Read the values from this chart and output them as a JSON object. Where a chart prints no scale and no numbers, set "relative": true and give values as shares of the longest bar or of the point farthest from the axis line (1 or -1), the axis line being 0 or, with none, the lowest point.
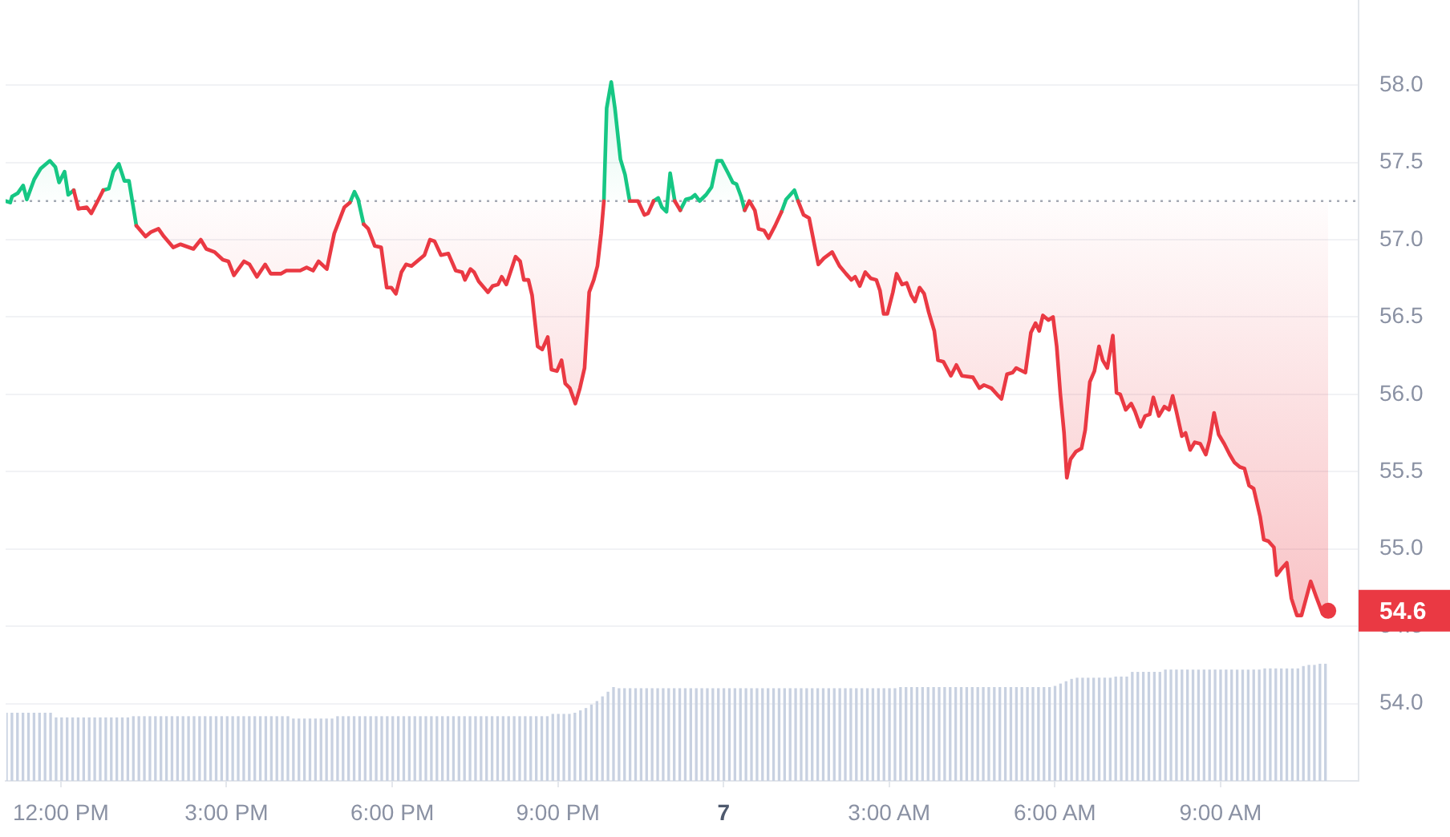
{
  "chart_data": [
    {
      "type": "line",
      "x": [
        "--01-06T11:00",
        "--01-06T11:05",
        "--01-06T11:07",
        "--01-06T11:13",
        "--01-06T11:19",
        "--01-06T11:23",
        "--01-06T11:31",
        "--01-06T11:38",
        "--01-06T11:48",
        "--01-06T11:54",
        "--01-06T11:58",
        "--01-06T12:04",
        "--01-06T12:08",
        "--01-06T12:14",
        "--01-06T12:19",
        "--01-06T12:28",
        "--01-06T12:33",
        "--01-06T12:40",
        "--01-06T12:46",
        "--01-06T12:52",
        "--01-06T12:57",
        "--01-06T13:03",
        "--01-06T13:09",
        "--01-06T13:14",
        "--01-06T13:22",
        "--01-06T13:32",
        "--01-06T13:38",
        "--01-06T13:46",
        "--01-06T13:52",
        "--01-06T14:02",
        "--01-06T14:10",
        "--01-06T14:24",
        "--01-06T14:32",
        "--01-06T14:38",
        "--01-06T14:47",
        "--01-06T14:56",
        "--01-06T15:02",
        "--01-06T15:08",
        "--01-06T15:19",
        "--01-06T15:25",
        "--01-06T15:33",
        "--01-06T15:42",
        "--01-06T15:48",
        "--01-06T15:59",
        "--01-06T16:05",
        "--01-06T16:20",
        "--01-06T16:27",
        "--01-06T16:34",
        "--01-06T16:40",
        "--01-06T16:49",
        "--01-06T16:57",
        "--01-06T17:08",
        "--01-06T17:14",
        "--01-06T17:19",
        "--01-06T17:23",
        "--01-06T17:29",
        "--01-06T17:34",
        "--01-06T17:41",
        "--01-06T17:48",
        "--01-06T17:54",
        "--01-06T17:59",
        "--01-06T18:04",
        "--01-06T18:10",
        "--01-06T18:15",
        "--01-06T18:21",
        "--01-06T18:29",
        "--01-06T18:35",
        "--01-06T18:41",
        "--01-06T18:46",
        "--01-06T18:53",
        "--01-06T19:01",
        "--01-06T19:09",
        "--01-06T19:16",
        "--01-06T19:19",
        "--01-06T19:25",
        "--01-06T19:29",
        "--01-06T19:34",
        "--01-06T19:44",
        "--01-06T19:49",
        "--01-06T19:55",
        "--01-06T19:59",
        "--01-06T20:04",
        "--01-06T20:14",
        "--01-06T20:19",
        "--01-06T20:23",
        "--01-06T20:28",
        "--01-06T20:32",
        "--01-06T20:38",
        "--01-06T20:43",
        "--01-06T20:49",
        "--01-06T20:53",
        "--01-06T20:59",
        "--01-06T21:04",
        "--01-06T21:08",
        "--01-06T21:13",
        "--01-06T21:19",
        "--01-06T21:24",
        "--01-06T21:29",
        "--01-06T21:34",
        "--01-06T21:39",
        "--01-06T21:43",
        "--01-06T21:47",
        "--01-06T21:50",
        "--01-06T21:53",
        "--01-06T21:58",
        "--01-06T22:02",
        "--01-06T22:08",
        "--01-06T22:13",
        "--01-06T22:18",
        "--01-06T22:27",
        "--01-06T22:34",
        "--01-06T22:38",
        "--01-06T22:44",
        "--01-06T22:49",
        "--01-06T22:53",
        "--01-06T22:58",
        "--01-06T23:02",
        "--01-06T23:07",
        "--01-06T23:13",
        "--01-06T23:19",
        "--01-06T23:25",
        "--01-06T23:29",
        "--01-06T23:34",
        "--01-06T23:41",
        "--01-06T23:47",
        "--01-06T23:53",
        "--01-06T23:58",
        "--01-07T00:05",
        "--01-07T00:10",
        "--01-07T00:14",
        "--01-07T00:19",
        "--01-07T00:23",
        "--01-07T00:28",
        "--01-07T00:34",
        "--01-07T00:38",
        "--01-07T00:44",
        "--01-07T00:49",
        "--01-07T00:56",
        "--01-07T01:03",
        "--01-07T01:08",
        "--01-07T01:17",
        "--01-07T01:21",
        "--01-07T01:27",
        "--01-07T01:33",
        "--01-07T01:43",
        "--01-07T01:49",
        "--01-07T01:58",
        "--01-07T02:06",
        "--01-07T02:13",
        "--01-07T02:19",
        "--01-07T02:23",
        "--01-07T02:28",
        "--01-07T02:34",
        "--01-07T02:40",
        "--01-07T02:46",
        "--01-07T02:50",
        "--01-07T02:54",
        "--01-07T02:58",
        "--01-07T03:04",
        "--01-07T03:08",
        "--01-07T03:14",
        "--01-07T03:19",
        "--01-07T03:24",
        "--01-07T03:28",
        "--01-07T03:33",
        "--01-07T03:38",
        "--01-07T03:43",
        "--01-07T03:49",
        "--01-07T03:53",
        "--01-07T03:59",
        "--01-07T04:07",
        "--01-07T04:13",
        "--01-07T04:19",
        "--01-07T04:31",
        "--01-07T04:38",
        "--01-07T04:43",
        "--01-07T04:51",
        "--01-07T04:57",
        "--01-07T05:02",
        "--01-07T05:08",
        "--01-07T05:14",
        "--01-07T05:18",
        "--01-07T05:28",
        "--01-07T05:34",
        "--01-07T05:39",
        "--01-07T05:43",
        "--01-07T05:47",
        "--01-07T05:53",
        "--01-07T05:58",
        "--01-07T06:02",
        "--01-07T06:06",
        "--01-07T06:10",
        "--01-07T06:13",
        "--01-07T06:17",
        "--01-07T06:23",
        "--01-07T06:29",
        "--01-07T06:33",
        "--01-07T06:38",
        "--01-07T06:43",
        "--01-07T06:48",
        "--01-07T06:52",
        "--01-07T06:57",
        "--01-07T07:03",
        "--01-07T07:07",
        "--01-07T07:11",
        "--01-07T07:17",
        "--01-07T07:23",
        "--01-07T07:27",
        "--01-07T07:33",
        "--01-07T07:38",
        "--01-07T07:43",
        "--01-07T07:47",
        "--01-07T07:53",
        "--01-07T07:59",
        "--01-07T08:04",
        "--01-07T08:08",
        "--01-07T08:12",
        "--01-07T08:18",
        "--01-07T08:22",
        "--01-07T08:27",
        "--01-07T08:32",
        "--01-07T08:38",
        "--01-07T08:44",
        "--01-07T08:48",
        "--01-07T08:53",
        "--01-07T08:58",
        "--01-07T09:04",
        "--01-07T09:10",
        "--01-07T09:15",
        "--01-07T09:21",
        "--01-07T09:26",
        "--01-07T09:31",
        "--01-07T09:36",
        "--01-07T09:43",
        "--01-07T09:47",
        "--01-07T09:52",
        "--01-07T09:58",
        "--01-07T10:01",
        "--01-07T10:06",
        "--01-07T10:12",
        "--01-07T10:17",
        "--01-07T10:23",
        "--01-07T10:28",
        "--01-07T10:38",
        "--01-07T10:44",
        "--01-07T10:51",
        "--01-07T10:57"
      ],
      "series": [
        {
          "color": "#ea3943",
          "values": [
            null,
            null,
            null,
            null,
            null,
            null,
            null,
            null,
            null,
            null,
            null,
            null,
            null,
            57.32,
            57.2,
            57.21,
            57.17,
            57.25,
            57.32,
            null,
            null,
            null,
            null,
            null,
            57.09,
            57.02,
            57.05,
            57.07,
            57.02,
            56.95,
            56.97,
            56.94,
            57,
            56.94,
            56.92,
            56.87,
            56.86,
            56.77,
            56.86,
            56.84,
            56.76,
            56.84,
            56.78,
            56.78,
            56.8,
            56.8,
            56.82,
            56.8,
            56.86,
            56.81,
            57.04,
            57.21,
            57.24,
            null,
            null,
            57.1,
            57.07,
            56.96,
            56.95,
            56.69,
            56.69,
            56.65,
            56.79,
            56.84,
            56.83,
            56.87,
            56.9,
            57,
            56.99,
            56.9,
            56.91,
            56.8,
            56.79,
            56.74,
            56.81,
            56.79,
            56.73,
            56.66,
            56.7,
            56.71,
            56.76,
            56.71,
            56.89,
            56.86,
            56.74,
            56.74,
            56.64,
            56.31,
            56.29,
            56.37,
            56.16,
            56.15,
            56.22,
            56.07,
            56.04,
            55.94,
            56.04,
            56.17,
            56.66,
            56.74,
            56.83,
            57.04,
            57.25,
            null,
            null,
            null,
            null,
            null,
            57.25,
            57.25,
            57.16,
            57.17,
            57.25,
            null,
            null,
            null,
            null,
            57.25,
            57.19,
            null,
            null,
            null,
            null,
            null,
            null,
            null,
            null,
            null,
            null,
            null,
            null,
            57.19,
            57.25,
            57.19,
            57.07,
            57.06,
            57.01,
            57.09,
            57.18,
            null,
            null,
            57.25,
            57.16,
            57.14,
            56.84,
            56.88,
            56.92,
            56.83,
            56.78,
            56.74,
            56.76,
            56.7,
            56.79,
            56.75,
            56.74,
            56.67,
            56.52,
            56.52,
            56.66,
            56.78,
            56.71,
            56.72,
            56.64,
            56.6,
            56.69,
            56.65,
            56.53,
            56.41,
            56.22,
            56.21,
            56.12,
            56.19,
            56.12,
            56.11,
            56.04,
            56.06,
            56.04,
            56,
            55.97,
            56.13,
            56.14,
            56.17,
            56.14,
            56.4,
            56.46,
            56.41,
            56.51,
            56.48,
            56.5,
            56.31,
            56,
            55.75,
            55.46,
            55.58,
            55.63,
            55.65,
            55.77,
            56.08,
            56.15,
            56.31,
            56.22,
            56.17,
            56.38,
            56.01,
            56,
            55.9,
            55.94,
            55.89,
            55.79,
            55.86,
            55.87,
            55.98,
            55.86,
            55.92,
            55.9,
            55.99,
            55.89,
            55.73,
            55.75,
            55.64,
            55.69,
            55.68,
            55.61,
            55.7,
            55.88,
            55.74,
            55.68,
            55.61,
            55.56,
            55.53,
            55.52,
            55.41,
            55.39,
            55.21,
            55.06,
            55.05,
            55.01,
            54.83,
            54.87,
            54.91,
            54.68,
            54.57,
            54.57,
            54.79,
            54.69,
            54.58,
            54.6
          ],
          "upper": [
            57.25,
            57.25,
            57.28,
            57.3,
            57.35,
            57.26,
            57.39,
            57.46,
            57.51,
            57.47,
            57.37,
            57.44,
            57.29,
            57.32,
            57.25,
            57.25,
            57.25,
            57.25,
            57.32,
            57.33,
            57.44,
            57.49,
            57.38,
            57.38,
            57.25,
            57.25,
            57.25,
            57.25,
            57.25,
            57.25,
            57.25,
            57.25,
            57.25,
            57.25,
            57.25,
            57.25,
            57.25,
            57.25,
            57.25,
            57.25,
            57.25,
            57.25,
            57.25,
            57.25,
            57.25,
            57.25,
            57.25,
            57.25,
            57.25,
            57.25,
            57.25,
            57.25,
            57.25,
            57.31,
            57.26,
            57.25,
            57.25,
            57.25,
            57.25,
            57.25,
            57.25,
            57.25,
            57.25,
            57.25,
            57.25,
            57.25,
            57.25,
            57.25,
            57.25,
            57.25,
            57.25,
            57.25,
            57.25,
            57.25,
            57.25,
            57.25,
            57.25,
            57.25,
            57.25,
            57.25,
            57.25,
            57.25,
            57.25,
            57.25,
            57.25,
            57.25,
            57.25,
            57.25,
            57.25,
            57.25,
            57.25,
            57.25,
            57.25,
            57.25,
            57.25,
            57.25,
            57.25,
            57.25,
            57.25,
            57.25,
            57.25,
            57.25,
            57.25,
            57.85,
            58.02,
            57.85,
            57.52,
            57.42,
            57.25,
            57.25,
            57.25,
            57.25,
            57.25,
            57.27,
            57.25,
            57.25,
            57.43,
            57.25,
            57.25,
            57.26,
            57.27,
            57.29,
            57.25,
            57.29,
            57.34,
            57.51,
            57.51,
            57.43,
            57.37,
            57.36,
            57.28,
            57.25,
            57.25,
            57.25,
            57.25,
            57.25,
            57.25,
            57.25,
            57.25,
            57.26,
            57.32,
            57.25,
            57.25,
            57.25,
            57.25,
            57.25,
            57.25,
            57.25,
            57.25,
            57.25,
            57.25,
            57.25,
            57.25,
            57.25,
            57.25,
            57.25,
            57.25,
            57.25,
            57.25,
            57.25,
            57.25,
            57.25,
            57.25,
            57.25,
            57.25,
            57.25,
            57.25,
            57.25,
            57.25,
            57.25,
            57.25,
            57.25,
            57.25,
            57.25,
            57.25,
            57.25,
            57.25,
            57.25,
            57.25,
            57.25,
            57.25,
            57.25,
            57.25,
            57.25,
            57.25,
            57.25,
            57.25,
            57.25,
            57.25,
            57.25,
            57.25,
            57.25,
            57.25,
            57.25,
            57.25,
            57.25,
            57.25,
            57.25,
            57.25,
            57.25,
            57.25,
            57.25,
            57.25,
            57.25,
            57.25,
            57.25,
            57.25,
            57.25,
            57.25,
            57.25,
            57.25,
            57.25,
            57.25,
            57.25,
            57.25,
            57.25,
            57.25,
            57.25,
            57.25,
            57.25,
            57.25,
            57.25,
            57.25,
            57.25,
            57.25,
            57.25,
            57.25,
            57.25,
            57.25,
            57.25,
            57.25,
            57.25,
            57.25,
            57.25,
            57.25,
            57.25,
            57.25,
            57.25,
            57.25,
            57.25,
            57.25,
            57.25,
            57.25,
            57.25,
            57.25,
            57.25,
            57.25
          ],
          "lower": [
            57.25,
            57.24,
            57.25,
            57.25,
            57.25,
            57.25,
            57.25,
            57.25,
            57.25,
            57.25,
            57.25,
            57.25,
            57.25,
            57.25,
            57.2,
            57.21,
            57.17,
            57.25,
            57.25,
            57.25,
            57.25,
            57.25,
            57.25,
            57.25,
            57.09,
            57.02,
            57.05,
            57.07,
            57.02,
            56.95,
            56.97,
            56.94,
            57,
            56.94,
            56.92,
            56.87,
            56.86,
            56.77,
            56.86,
            56.84,
            56.76,
            56.84,
            56.78,
            56.78,
            56.8,
            56.8,
            56.82,
            56.8,
            56.86,
            56.81,
            57.04,
            57.21,
            57.24,
            57.25,
            57.25,
            57.1,
            57.07,
            56.96,
            56.95,
            56.69,
            56.69,
            56.65,
            56.79,
            56.84,
            56.83,
            56.87,
            56.9,
            57,
            56.99,
            56.9,
            56.91,
            56.8,
            56.79,
            56.74,
            56.81,
            56.79,
            56.73,
            56.66,
            56.7,
            56.71,
            56.76,
            56.71,
            56.89,
            56.86,
            56.74,
            56.74,
            56.64,
            56.31,
            56.29,
            56.37,
            56.16,
            56.15,
            56.22,
            56.07,
            56.04,
            55.94,
            56.04,
            56.17,
            56.66,
            56.74,
            56.83,
            57.04,
            57.25,
            57.25,
            57.25,
            57.25,
            57.25,
            57.25,
            57.25,
            57.25,
            57.16,
            57.17,
            57.25,
            57.25,
            57.21,
            57.18,
            57.25,
            57.25,
            57.19,
            57.25,
            57.25,
            57.25,
            57.25,
            57.25,
            57.25,
            57.25,
            57.25,
            57.25,
            57.25,
            57.25,
            57.25,
            57.19,
            57.25,
            57.19,
            57.07,
            57.06,
            57.01,
            57.09,
            57.18,
            57.25,
            57.25,
            57.25,
            57.16,
            57.14,
            56.84,
            56.88,
            56.92,
            56.83,
            56.78,
            56.74,
            56.76,
            56.7,
            56.79,
            56.75,
            56.74,
            56.67,
            56.52,
            56.52,
            56.66,
            56.78,
            56.71,
            56.72,
            56.64,
            56.6,
            56.69,
            56.65,
            56.53,
            56.41,
            56.22,
            56.21,
            56.12,
            56.19,
            56.12,
            56.11,
            56.04,
            56.06,
            56.04,
            56,
            55.97,
            56.13,
            56.14,
            56.17,
            56.14,
            56.4,
            56.46,
            56.41,
            56.51,
            56.48,
            56.5,
            56.31,
            56,
            55.75,
            55.46,
            55.58,
            55.63,
            55.65,
            55.77,
            56.08,
            56.15,
            56.31,
            56.22,
            56.17,
            56.38,
            56.01,
            56,
            55.9,
            55.94,
            55.89,
            55.79,
            55.86,
            55.87,
            55.98,
            55.86,
            55.92,
            55.9,
            55.99,
            55.89,
            55.73,
            55.75,
            55.64,
            55.69,
            55.68,
            55.61,
            55.7,
            55.88,
            55.74,
            55.68,
            55.61,
            55.56,
            55.53,
            55.52,
            55.41,
            55.39,
            55.21,
            55.06,
            55.05,
            55.01,
            54.83,
            54.87,
            54.91,
            54.68,
            54.57,
            54.57,
            54.79,
            54.69,
            54.58,
            54.6
          ]
        },
        {
          "color": "#16c784",
          "x": [
            "--01-06T11:00",
            "--01-06T11:05",
            "--01-06T11:07",
            "--01-06T11:13",
            "--01-06T11:19",
            "--01-06T11:23",
            "--01-06T11:31",
            "--01-06T11:38",
            "--01-06T11:48",
            "--01-06T11:54",
            "--01-06T11:58",
            "--01-06T12:04",
            "--01-06T12:08",
            "--01-06T12:14",
            "--01-06T12:28",
            "--01-06T12:46",
            "--01-06T12:52",
            "--01-06T12:57",
            "--01-06T13:03",
            "--01-06T13:09",
            "--01-06T13:14",
            "--01-06T13:22",
            "--01-06T13:32",
            "--01-06T17:14",
            "--01-06T17:19",
            "--01-06T17:23",
            "--01-06T17:29",
            "--01-06T17:34",
            "--01-06T21:50",
            "--01-06T21:53",
            "--01-06T21:58",
            "--01-06T22:02",
            "--01-06T22:08",
            "--01-06T22:13",
            "--01-06T22:18",
            "--01-06T22:27",
            "--01-06T22:44",
            "--01-06T22:49",
            "--01-06T22:53",
            "--01-06T22:58",
            "--01-06T23:02",
            "--01-06T23:07",
            "--01-06T23:10",
            "--01-06T23:13",
            "--01-06T23:19",
            "--01-06T23:25",
            "--01-06T23:29",
            "--01-06T23:34",
            "--01-06T23:41",
            "--01-06T23:47",
            "--01-06T23:53",
            "--01-06T23:58",
            "--01-07T00:05",
            "--01-07T00:10",
            "--01-07T00:14",
            "--01-07T00:19",
            "--01-07T00:23",
            "--01-07T00:28",
            "--01-07T01:03",
            "--01-07T01:08",
            "--01-07T01:17",
            "--01-07T01:21"
          ],
          "values": [
            57.25,
            57.24,
            57.28,
            57.3,
            57.35,
            57.26,
            57.39,
            57.46,
            57.51,
            57.47,
            57.37,
            57.44,
            57.29,
            57.32,
            null,
            57.32,
            57.33,
            57.44,
            57.49,
            57.38,
            57.38,
            57.09,
            null,
            57.24,
            57.31,
            57.26,
            57.1,
            null,
            57.25,
            57.85,
            58.02,
            57.85,
            57.52,
            57.42,
            57.25,
            null,
            57.25,
            57.27,
            57.21,
            57.18,
            57.43,
            57.25,
            null,
            57.19,
            57.26,
            57.27,
            57.29,
            57.25,
            57.29,
            57.34,
            57.51,
            57.51,
            57.43,
            57.37,
            57.36,
            57.28,
            57.19,
            null,
            57.18,
            57.26,
            57.32,
            57.25
          ]
        }
      ],
      "xlim": [
        "--01-06T11:00",
        "--01-07T11:30"
      ],
      "xticks": [
        {
          "value": "--01-06T12:00",
          "label": "12:00 PM"
        },
        {
          "value": "--01-06T15:00",
          "label": "3:00 PM"
        },
        {
          "value": "--01-06T18:00",
          "label": "6:00 PM"
        },
        {
          "value": "--01-06T21:00",
          "label": "9:00 PM"
        },
        {
          "value": "--01-07T00:00",
          "label": "7"
        },
        {
          "value": "--01-07T03:00",
          "label": "3:00 AM"
        },
        {
          "value": "--01-07T06:00",
          "label": "6:00 AM"
        },
        {
          "value": "--01-07T09:00",
          "label": "9:00 AM"
        }
      ],
      "ylim": [
        53.5,
        58.55
      ],
      "yticks": [
        {
          "value": 54,
          "label": "54.0"
        },
        54.5,
        {
          "value": 55,
          "label": "55.0"
        },
        55.5,
        {
          "value": 56,
          "label": "56.0"
        },
        56.5,
        {
          "value": 57,
          "label": "57.0"
        },
        57.5,
        {
          "value": 58,
          "label": "58.0"
        }
      ],
      "grid": "y",
      "ref_lines": [
        {
          "axis": "y",
          "value": 57.25,
          "color": "#a3a8b3",
          "line_style": "dotted"
        }
      ],
      "annotations": [
        {
          "text": "54.6",
          "x": "--01-07T10:57",
          "y": 54.6
        }
      ]
    },
    {
      "type": "bar",
      "relative": true,
      "color": "#c8d1e1",
      "tick_labels": false,
      "xlim": [
        "--01-06T11:00",
        "--01-07T11:30"
      ],
      "x": [
        "--01-06T11:00",
        "--01-06T11:06",
        "--01-06T11:12",
        "--01-06T11:18",
        "--01-06T11:24",
        "--01-06T11:30",
        "--01-06T11:36",
        "--01-06T11:42",
        "--01-06T11:48",
        "--01-06T11:54",
        "--01-06T12:00",
        "--01-06T12:06",
        "--01-06T12:12",
        "--01-06T12:18",
        "--01-06T12:24",
        "--01-06T12:30",
        "--01-06T12:36",
        "--01-06T12:42",
        "--01-06T12:48",
        "--01-06T12:54",
        "--01-06T13:00",
        "--01-06T13:06",
        "--01-06T13:12",
        "--01-06T13:18",
        "--01-06T13:24",
        "--01-06T13:30",
        "--01-06T13:36",
        "--01-06T13:42",
        "--01-06T13:48",
        "--01-06T13:54",
        "--01-06T14:00",
        "--01-06T14:06",
        "--01-06T14:12",
        "--01-06T14:18",
        "--01-06T14:24",
        "--01-06T14:30",
        "--01-06T14:36",
        "--01-06T14:42",
        "--01-06T14:48",
        "--01-06T14:54",
        "--01-06T15:00",
        "--01-06T15:06",
        "--01-06T15:12",
        "--01-06T15:18",
        "--01-06T15:24",
        "--01-06T15:30",
        "--01-06T15:36",
        "--01-06T15:42",
        "--01-06T15:48",
        "--01-06T15:54",
        "--01-06T16:00",
        "--01-06T16:06",
        "--01-06T16:12",
        "--01-06T16:18",
        "--01-06T16:24",
        "--01-06T16:30",
        "--01-06T16:36",
        "--01-06T16:42",
        "--01-06T16:48",
        "--01-06T16:54",
        "--01-06T17:00",
        "--01-06T17:06",
        "--01-06T17:12",
        "--01-06T17:18",
        "--01-06T17:24",
        "--01-06T17:30",
        "--01-06T17:36",
        "--01-06T17:42",
        "--01-06T17:48",
        "--01-06T17:54",
        "--01-06T18:00",
        "--01-06T18:06",
        "--01-06T18:12",
        "--01-06T18:18",
        "--01-06T18:24",
        "--01-06T18:30",
        "--01-06T18:36",
        "--01-06T18:42",
        "--01-06T18:48",
        "--01-06T18:54",
        "--01-06T19:00",
        "--01-06T19:06",
        "--01-06T19:12",
        "--01-06T19:18",
        "--01-06T19:24",
        "--01-06T19:30",
        "--01-06T19:36",
        "--01-06T19:42",
        "--01-06T19:48",
        "--01-06T19:54",
        "--01-06T20:00",
        "--01-06T20:06",
        "--01-06T20:12",
        "--01-06T20:18",
        "--01-06T20:24",
        "--01-06T20:30",
        "--01-06T20:36",
        "--01-06T20:42",
        "--01-06T20:48",
        "--01-06T20:54",
        "--01-06T21:00",
        "--01-06T21:06",
        "--01-06T21:12",
        "--01-06T21:18",
        "--01-06T21:24",
        "--01-06T21:30",
        "--01-06T21:36",
        "--01-06T21:42",
        "--01-06T21:48",
        "--01-06T21:54",
        "--01-06T22:00",
        "--01-06T22:06",
        "--01-06T22:12",
        "--01-06T22:18",
        "--01-06T22:24",
        "--01-06T22:30",
        "--01-06T22:36",
        "--01-06T22:42",
        "--01-06T22:48",
        "--01-06T22:54",
        "--01-06T23:00",
        "--01-06T23:06",
        "--01-06T23:12",
        "--01-06T23:18",
        "--01-06T23:24",
        "--01-06T23:30",
        "--01-06T23:36",
        "--01-06T23:42",
        "--01-06T23:48",
        "--01-06T23:54",
        "--01-07T00:00",
        "--01-07T00:06",
        "--01-07T00:12",
        "--01-07T00:18",
        "--01-07T00:24",
        "--01-07T00:30",
        "--01-07T00:36",
        "--01-07T00:42",
        "--01-07T00:48",
        "--01-07T00:54",
        "--01-07T01:00",
        "--01-07T01:06",
        "--01-07T01:12",
        "--01-07T01:18",
        "--01-07T01:24",
        "--01-07T01:30",
        "--01-07T01:36",
        "--01-07T01:42",
        "--01-07T01:48",
        "--01-07T01:54",
        "--01-07T02:00",
        "--01-07T02:06",
        "--01-07T02:12",
        "--01-07T02:18",
        "--01-07T02:24",
        "--01-07T02:30",
        "--01-07T02:36",
        "--01-07T02:42",
        "--01-07T02:48",
        "--01-07T02:54",
        "--01-07T03:00",
        "--01-07T03:06",
        "--01-07T03:12",
        "--01-07T03:18",
        "--01-07T03:24",
        "--01-07T03:30",
        "--01-07T03:36",
        "--01-07T03:42",
        "--01-07T03:48",
        "--01-07T03:54",
        "--01-07T04:00",
        "--01-07T04:06",
        "--01-07T04:12",
        "--01-07T04:18",
        "--01-07T04:24",
        "--01-07T04:30",
        "--01-07T04:36",
        "--01-07T04:42",
        "--01-07T04:48",
        "--01-07T04:54",
        "--01-07T05:00",
        "--01-07T05:06",
        "--01-07T05:12",
        "--01-07T05:18",
        "--01-07T05:24",
        "--01-07T05:30",
        "--01-07T05:36",
        "--01-07T05:42",
        "--01-07T05:48",
        "--01-07T05:54",
        "--01-07T06:00",
        "--01-07T06:06",
        "--01-07T06:12",
        "--01-07T06:18",
        "--01-07T06:24",
        "--01-07T06:30",
        "--01-07T06:36",
        "--01-07T06:42",
        "--01-07T06:48",
        "--01-07T06:54",
        "--01-07T07:00",
        "--01-07T07:06",
        "--01-07T07:12",
        "--01-07T07:18",
        "--01-07T07:24",
        "--01-07T07:30",
        "--01-07T07:36",
        "--01-07T07:42",
        "--01-07T07:48",
        "--01-07T07:54",
        "--01-07T08:00",
        "--01-07T08:06",
        "--01-07T08:12",
        "--01-07T08:18",
        "--01-07T08:24",
        "--01-07T08:30",
        "--01-07T08:36",
        "--01-07T08:42",
        "--01-07T08:48",
        "--01-07T08:54",
        "--01-07T09:00",
        "--01-07T09:06",
        "--01-07T09:12",
        "--01-07T09:18",
        "--01-07T09:24",
        "--01-07T09:30",
        "--01-07T09:36",
        "--01-07T09:42",
        "--01-07T09:48",
        "--01-07T09:54",
        "--01-07T10:00",
        "--01-07T10:06",
        "--01-07T10:12",
        "--01-07T10:18",
        "--01-07T10:24",
        "--01-07T10:30",
        "--01-07T10:36",
        "--01-07T10:42",
        "--01-07T10:48",
        "--01-07T10:54"
      ],
      "values": [
        0.58,
        0.58,
        0.58,
        0.58,
        0.58,
        0.58,
        0.58,
        0.58,
        0.58,
        0.54,
        0.54,
        0.54,
        0.54,
        0.54,
        0.54,
        0.54,
        0.54,
        0.54,
        0.54,
        0.54,
        0.54,
        0.54,
        0.54,
        0.55,
        0.55,
        0.55,
        0.55,
        0.55,
        0.55,
        0.55,
        0.55,
        0.55,
        0.55,
        0.55,
        0.55,
        0.55,
        0.55,
        0.55,
        0.55,
        0.55,
        0.55,
        0.55,
        0.55,
        0.55,
        0.55,
        0.55,
        0.55,
        0.55,
        0.55,
        0.55,
        0.55,
        0.55,
        0.53,
        0.53,
        0.53,
        0.53,
        0.53,
        0.53,
        0.53,
        0.53,
        0.55,
        0.55,
        0.55,
        0.55,
        0.55,
        0.55,
        0.55,
        0.55,
        0.55,
        0.55,
        0.55,
        0.55,
        0.55,
        0.55,
        0.55,
        0.55,
        0.55,
        0.55,
        0.55,
        0.55,
        0.55,
        0.55,
        0.55,
        0.55,
        0.55,
        0.55,
        0.55,
        0.55,
        0.55,
        0.55,
        0.55,
        0.55,
        0.55,
        0.55,
        0.55,
        0.55,
        0.55,
        0.55,
        0.55,
        0.57,
        0.57,
        0.57,
        0.57,
        0.58,
        0.6,
        0.62,
        0.65,
        0.68,
        0.72,
        0.76,
        0.8,
        0.79,
        0.79,
        0.79,
        0.79,
        0.79,
        0.79,
        0.79,
        0.79,
        0.79,
        0.79,
        0.79,
        0.79,
        0.79,
        0.79,
        0.79,
        0.79,
        0.79,
        0.79,
        0.79,
        0.79,
        0.79,
        0.79,
        0.79,
        0.79,
        0.79,
        0.79,
        0.79,
        0.79,
        0.79,
        0.79,
        0.79,
        0.79,
        0.79,
        0.79,
        0.79,
        0.79,
        0.79,
        0.79,
        0.79,
        0.79,
        0.79,
        0.79,
        0.79,
        0.79,
        0.79,
        0.79,
        0.79,
        0.79,
        0.79,
        0.79,
        0.79,
        0.8,
        0.8,
        0.8,
        0.8,
        0.8,
        0.8,
        0.8,
        0.8,
        0.8,
        0.8,
        0.8,
        0.8,
        0.8,
        0.8,
        0.8,
        0.8,
        0.8,
        0.8,
        0.8,
        0.8,
        0.8,
        0.8,
        0.8,
        0.8,
        0.8,
        0.8,
        0.8,
        0.8,
        0.81,
        0.83,
        0.85,
        0.87,
        0.88,
        0.88,
        0.88,
        0.88,
        0.88,
        0.88,
        0.88,
        0.89,
        0.89,
        0.89,
        0.93,
        0.93,
        0.93,
        0.93,
        0.93,
        0.93,
        0.95,
        0.95,
        0.95,
        0.95,
        0.95,
        0.95,
        0.95,
        0.95,
        0.95,
        0.95,
        0.95,
        0.95,
        0.95,
        0.95,
        0.95,
        0.95,
        0.95,
        0.95,
        0.96,
        0.96,
        0.96,
        0.96,
        0.96,
        0.96,
        0.96,
        0.98,
        0.99,
        0.99,
        1,
        1
      ]
    }
  ]
}
